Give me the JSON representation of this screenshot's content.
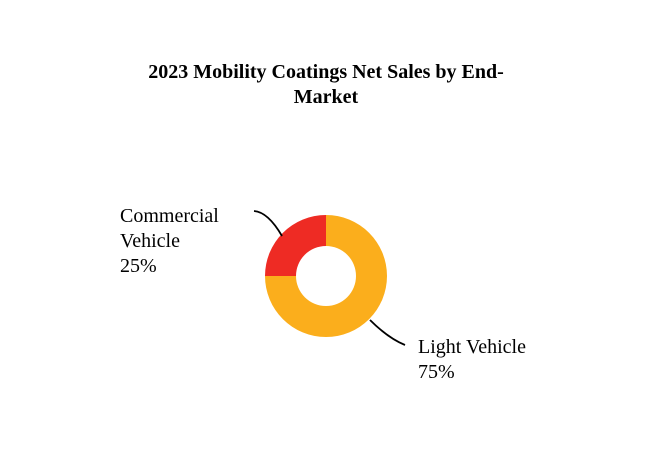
{
  "chart_data": {
    "type": "pie",
    "style": "donut",
    "title": "2023 Mobility Coatings Net Sales by End-Market",
    "title_lines": [
      "2023 Mobility Coatings Net Sales by End-",
      "Market"
    ],
    "slices": [
      {
        "label_lines": [
          "Light Vehicle"
        ],
        "value": 75,
        "value_label": "75%",
        "color": "#FBAE1C"
      },
      {
        "label_lines": [
          "Commercial",
          "Vehicle"
        ],
        "value": 25,
        "value_label": "25%",
        "color": "#EE2B24"
      }
    ]
  }
}
